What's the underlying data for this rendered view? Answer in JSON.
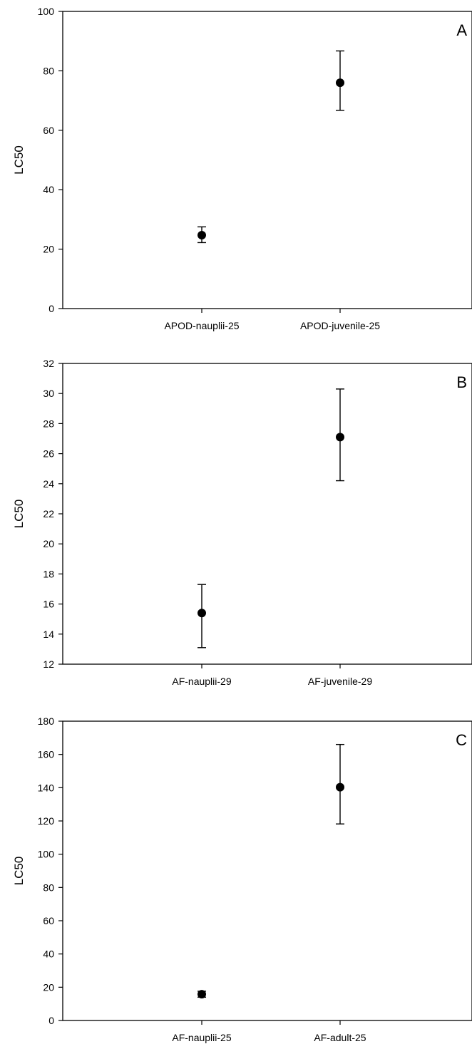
{
  "chart_data": [
    {
      "type": "scatter",
      "panel_label": "A",
      "ylabel": "LC50",
      "categories": [
        "APOD-nauplii-25",
        "APOD-juvenile-25"
      ],
      "values": [
        24.7,
        76.0
      ],
      "error_low": [
        22.2,
        66.7
      ],
      "error_high": [
        27.5,
        86.7
      ],
      "ylim": [
        0,
        100
      ],
      "yticks": [
        0,
        20,
        40,
        60,
        80,
        100
      ],
      "grid": false
    },
    {
      "type": "scatter",
      "panel_label": "B",
      "ylabel": "LC50",
      "categories": [
        "AF-nauplii-29",
        "AF-juvenile-29"
      ],
      "values": [
        15.4,
        27.1
      ],
      "error_low": [
        13.1,
        24.2
      ],
      "error_high": [
        17.3,
        30.3
      ],
      "ylim": [
        12,
        32
      ],
      "yticks": [
        12,
        14,
        16,
        18,
        20,
        22,
        24,
        26,
        28,
        30,
        32
      ],
      "grid": false
    },
    {
      "type": "scatter",
      "panel_label": "C",
      "ylabel": "LC50",
      "categories": [
        "AF-nauplii-25",
        "AF-adult-25"
      ],
      "values": [
        15.8,
        140.3
      ],
      "error_low": [
        14.0,
        118.2
      ],
      "error_high": [
        17.6,
        166.0
      ],
      "ylim": [
        0,
        180
      ],
      "yticks": [
        0,
        20,
        40,
        60,
        80,
        100,
        120,
        140,
        160,
        180
      ],
      "grid": false
    }
  ]
}
